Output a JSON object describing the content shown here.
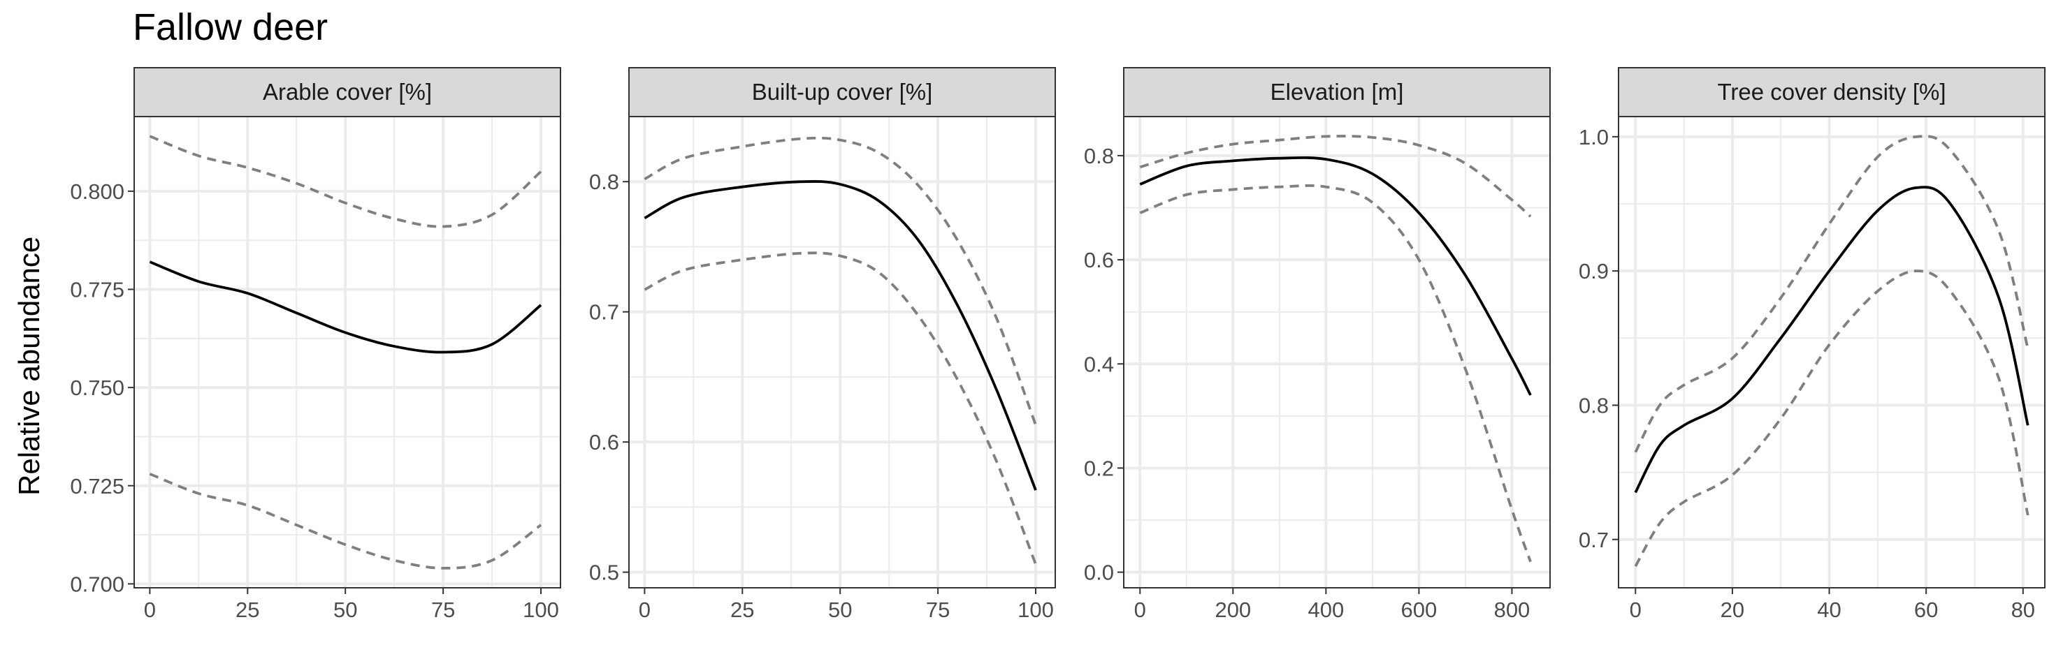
{
  "title": "Fallow deer",
  "ylabel": "Relative abundance",
  "colors": {
    "fit": "#000000",
    "ci": "#7f7f7f",
    "strip": "#d9d9d9",
    "grid": "#ebebeb",
    "frame": "#333333"
  },
  "chart_data": [
    {
      "type": "line",
      "facet": "Arable cover [%]",
      "xlim": [
        -4,
        105
      ],
      "ylim": [
        0.699,
        0.819
      ],
      "xticks": [
        0,
        25,
        50,
        75,
        100
      ],
      "xtick_labels": [
        "0",
        "25",
        "50",
        "75",
        "100"
      ],
      "yticks": [
        0.7,
        0.725,
        0.75,
        0.775,
        0.8
      ],
      "ytick_labels": [
        "0.700",
        "0.725",
        "0.750",
        "0.775",
        "0.800"
      ],
      "series": [
        {
          "role": "fit",
          "x": [
            0,
            12.5,
            25,
            37.5,
            50,
            62.5,
            75,
            87.5,
            100
          ],
          "y": [
            0.782,
            0.777,
            0.774,
            0.769,
            0.764,
            0.7605,
            0.759,
            0.761,
            0.771
          ]
        },
        {
          "role": "upper",
          "x": [
            0,
            12.5,
            25,
            37.5,
            50,
            62.5,
            75,
            87.5,
            100
          ],
          "y": [
            0.814,
            0.809,
            0.806,
            0.802,
            0.797,
            0.793,
            0.791,
            0.794,
            0.805
          ]
        },
        {
          "role": "lower",
          "x": [
            0,
            12.5,
            25,
            37.5,
            50,
            62.5,
            75,
            87.5,
            100
          ],
          "y": [
            0.728,
            0.723,
            0.72,
            0.715,
            0.71,
            0.706,
            0.704,
            0.706,
            0.715
          ]
        }
      ]
    },
    {
      "type": "line",
      "facet": "Built-up cover [%]",
      "xlim": [
        -4,
        105
      ],
      "ylim": [
        0.488,
        0.85
      ],
      "xticks": [
        0,
        25,
        50,
        75,
        100
      ],
      "xtick_labels": [
        "0",
        "25",
        "50",
        "75",
        "100"
      ],
      "yticks": [
        0.5,
        0.6,
        0.7,
        0.8
      ],
      "ytick_labels": [
        "0.5",
        "0.6",
        "0.7",
        "0.8"
      ],
      "series": [
        {
          "role": "fit",
          "x": [
            0,
            10,
            25,
            40,
            50,
            60,
            70,
            80,
            90,
            100
          ],
          "y": [
            0.772,
            0.788,
            0.796,
            0.8,
            0.798,
            0.785,
            0.755,
            0.705,
            0.64,
            0.563
          ]
        },
        {
          "role": "upper",
          "x": [
            0,
            10,
            25,
            40,
            50,
            60,
            70,
            80,
            90,
            100
          ],
          "y": [
            0.802,
            0.818,
            0.827,
            0.833,
            0.832,
            0.822,
            0.797,
            0.755,
            0.695,
            0.613
          ]
        },
        {
          "role": "lower",
          "x": [
            0,
            10,
            25,
            40,
            50,
            60,
            70,
            80,
            90,
            100
          ],
          "y": [
            0.717,
            0.732,
            0.74,
            0.745,
            0.743,
            0.73,
            0.697,
            0.648,
            0.585,
            0.506
          ]
        }
      ]
    },
    {
      "type": "line",
      "facet": "Elevation [m]",
      "xlim": [
        -35,
        882
      ],
      "ylim": [
        -0.03,
        0.875
      ],
      "xticks": [
        0,
        200,
        400,
        600,
        800
      ],
      "xtick_labels": [
        "0",
        "200",
        "400",
        "600",
        "800"
      ],
      "yticks": [
        0,
        0.2,
        0.4,
        0.6,
        0.8
      ],
      "ytick_labels": [
        "0.0",
        "0.2",
        "0.4",
        "0.6",
        "0.8"
      ],
      "series": [
        {
          "role": "fit",
          "x": [
            0,
            100,
            200,
            300,
            400,
            500,
            600,
            700,
            800,
            840
          ],
          "y": [
            0.745,
            0.78,
            0.79,
            0.795,
            0.793,
            0.765,
            0.69,
            0.57,
            0.41,
            0.34
          ]
        },
        {
          "role": "upper",
          "x": [
            0,
            100,
            200,
            300,
            400,
            500,
            600,
            700,
            800,
            840
          ],
          "y": [
            0.778,
            0.805,
            0.822,
            0.83,
            0.837,
            0.835,
            0.82,
            0.785,
            0.715,
            0.683
          ]
        },
        {
          "role": "lower",
          "x": [
            0,
            100,
            200,
            300,
            400,
            500,
            600,
            700,
            800,
            840
          ],
          "y": [
            0.69,
            0.725,
            0.735,
            0.74,
            0.74,
            0.71,
            0.6,
            0.39,
            0.12,
            0.02
          ]
        }
      ]
    },
    {
      "type": "line",
      "facet": "Tree cover density [%]",
      "xlim": [
        -3.5,
        84.5
      ],
      "ylim": [
        0.664,
        1.015
      ],
      "xticks": [
        0,
        20,
        40,
        60,
        80
      ],
      "xtick_labels": [
        "0",
        "20",
        "40",
        "60",
        "80"
      ],
      "yticks": [
        0.7,
        0.8,
        0.9,
        1.0
      ],
      "ytick_labels": [
        "0.7",
        "0.8",
        "0.9",
        "1.0"
      ],
      "series": [
        {
          "role": "fit",
          "x": [
            0,
            5,
            10,
            20,
            30,
            40,
            50,
            58,
            65,
            75,
            81
          ],
          "y": [
            0.735,
            0.77,
            0.785,
            0.805,
            0.85,
            0.9,
            0.945,
            0.962,
            0.95,
            0.88,
            0.785
          ]
        },
        {
          "role": "upper",
          "x": [
            0,
            5,
            10,
            20,
            30,
            40,
            50,
            58,
            65,
            75,
            81
          ],
          "y": [
            0.765,
            0.8,
            0.815,
            0.835,
            0.88,
            0.935,
            0.985,
            1.0,
            0.99,
            0.93,
            0.842
          ]
        },
        {
          "role": "lower",
          "x": [
            0,
            5,
            10,
            20,
            30,
            40,
            50,
            58,
            65,
            75,
            81
          ],
          "y": [
            0.68,
            0.712,
            0.728,
            0.748,
            0.79,
            0.845,
            0.885,
            0.9,
            0.885,
            0.82,
            0.718
          ]
        }
      ]
    }
  ]
}
